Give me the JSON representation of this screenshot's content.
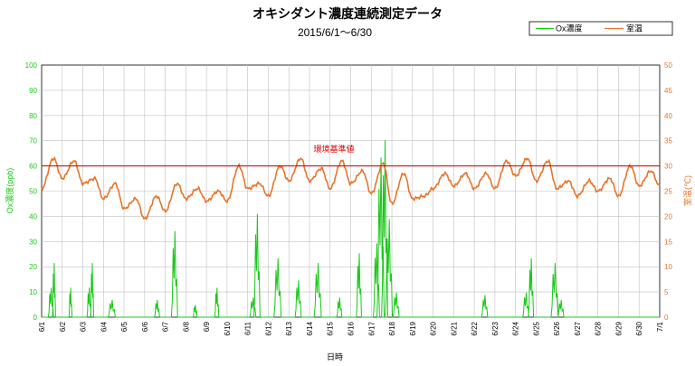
{
  "chart_data": {
    "type": "line",
    "title": "オキシダント濃度連続測定データ",
    "subtitle": "2015/6/1～6/30",
    "xlabel": "日時",
    "ylabel_left": "Ox濃度(ppb)",
    "ylabel_right": "室温(℃)",
    "ylim_left": [
      0,
      100
    ],
    "ylim_right": [
      0,
      50
    ],
    "yticks_left": [
      "0",
      "10",
      "20",
      "30",
      "40",
      "50",
      "60",
      "70",
      "80",
      "90",
      "100"
    ],
    "yticks_right": [
      "0",
      "5",
      "10",
      "15",
      "20",
      "25",
      "30",
      "35",
      "40",
      "45",
      "50"
    ],
    "xlim_days": [
      1,
      31
    ],
    "xticks": [
      "6/1",
      "6/2",
      "6/3",
      "6/4",
      "6/5",
      "6/6",
      "6/7",
      "6/8",
      "6/9",
      "6/10",
      "6/11",
      "6/12",
      "6/13",
      "6/14",
      "6/15",
      "6/16",
      "6/17",
      "6/18",
      "6/19",
      "6/20",
      "6/21",
      "6/22",
      "6/23",
      "6/24",
      "6/25",
      "6/26",
      "6/27",
      "6/28",
      "6/29",
      "6/30",
      "7/1"
    ],
    "grid": true,
    "legend_position": "top-right",
    "reference_line": {
      "label": "環境基準値",
      "value": 60,
      "axis": "left",
      "color": "#c00000"
    },
    "series": [
      {
        "name": "Ox濃度",
        "axis": "left",
        "color": "#19c819",
        "spikes": [
          {
            "day": 1.45,
            "peak": 12,
            "width": 0.25
          },
          {
            "day": 1.6,
            "peak": 22,
            "width": 0.15
          },
          {
            "day": 2.4,
            "peak": 12,
            "width": 0.15
          },
          {
            "day": 3.3,
            "peak": 12,
            "width": 0.2
          },
          {
            "day": 3.45,
            "peak": 22,
            "width": 0.15
          },
          {
            "day": 4.4,
            "peak": 7,
            "width": 0.35
          },
          {
            "day": 6.6,
            "peak": 7,
            "width": 0.25
          },
          {
            "day": 7.45,
            "peak": 35,
            "width": 0.3
          },
          {
            "day": 8.45,
            "peak": 5,
            "width": 0.2
          },
          {
            "day": 9.5,
            "peak": 12,
            "width": 0.2
          },
          {
            "day": 11.25,
            "peak": 8,
            "width": 0.3
          },
          {
            "day": 11.45,
            "peak": 42,
            "width": 0.3
          },
          {
            "day": 12.45,
            "peak": 24,
            "width": 0.35
          },
          {
            "day": 13.45,
            "peak": 15,
            "width": 0.3
          },
          {
            "day": 14.4,
            "peak": 22,
            "width": 0.35
          },
          {
            "day": 15.45,
            "peak": 8,
            "width": 0.25
          },
          {
            "day": 16.4,
            "peak": 26,
            "width": 0.25
          },
          {
            "day": 17.25,
            "peak": 30,
            "width": 0.3
          },
          {
            "day": 17.45,
            "peak": 65,
            "width": 0.35
          },
          {
            "day": 17.65,
            "peak": 72,
            "width": 0.3
          },
          {
            "day": 17.85,
            "peak": 40,
            "width": 0.35
          },
          {
            "day": 18.2,
            "peak": 10,
            "width": 0.3
          },
          {
            "day": 22.5,
            "peak": 9,
            "width": 0.3
          },
          {
            "day": 24.5,
            "peak": 10,
            "width": 0.3
          },
          {
            "day": 24.75,
            "peak": 24,
            "width": 0.25
          },
          {
            "day": 25.9,
            "peak": 22,
            "width": 0.35
          },
          {
            "day": 26.2,
            "peak": 7,
            "width": 0.3
          }
        ]
      },
      {
        "name": "室温",
        "axis": "right",
        "color": "#e8742a",
        "daily_min": [
          25.5,
          27.5,
          26.5,
          23.5,
          21.5,
          19.5,
          21.0,
          23.5,
          23.0,
          23.0,
          25.5,
          24.0,
          27.0,
          27.0,
          25.5,
          26.5,
          24.5,
          22.5,
          23.5,
          25.5,
          26.0,
          25.5,
          25.5,
          28.0,
          27.0,
          25.5,
          24.0,
          25.0,
          24.0,
          26.0
        ],
        "daily_max": [
          31.5,
          31.0,
          27.5,
          26.5,
          23.5,
          24.0,
          26.5,
          25.5,
          25.0,
          30.0,
          26.5,
          30.0,
          31.5,
          29.5,
          31.0,
          29.0,
          30.5,
          28.5,
          24.0,
          28.5,
          28.5,
          28.5,
          31.0,
          31.5,
          31.0,
          27.0,
          27.0,
          27.5,
          30.0,
          29.0
        ]
      }
    ]
  }
}
